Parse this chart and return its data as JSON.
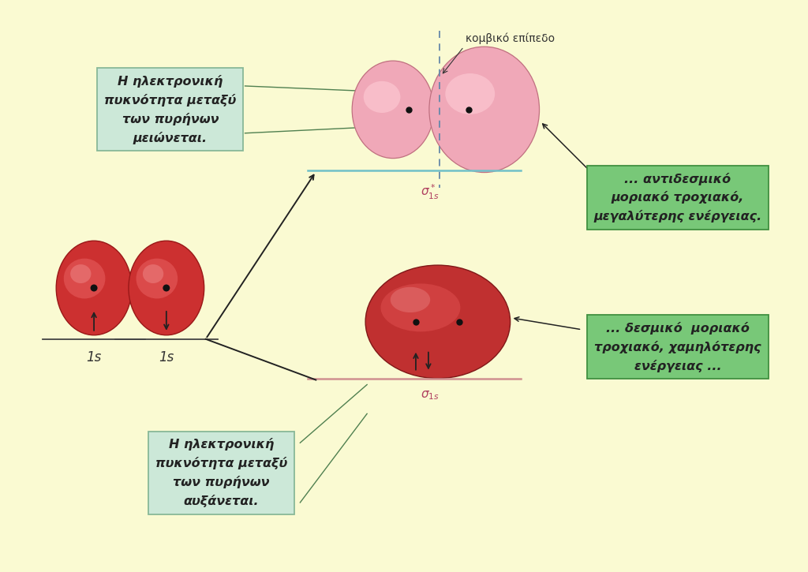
{
  "bg_color": "#FAFAD2",
  "atom_outer_color": "#cc3030",
  "atom_inner_color": "#e86060",
  "atom_highlight_color": "#f09090",
  "atom_dot_color": "#111111",
  "antibonding_left_color": "#f0a8b8",
  "antibonding_right_color": "#f0a8b8",
  "antibonding_edge_color": "#c07080",
  "bonding_color": "#c03030",
  "bonding_inner_color": "#e05050",
  "bonding_edge_color": "#801818",
  "sigma_star_line_color": "#70c0c8",
  "sigma_line_color": "#d09090",
  "dashed_color": "#6688aa",
  "arrow_color": "#222222",
  "node_label": "κομβικό επίπεδο",
  "sigma_star_text": "$\\sigma^*_{1s}$",
  "sigma_text": "$\\sigma_{1s}$",
  "label_1s": "1s",
  "box1_text": "Η ηλεκτρονική\nπυκνότητα μεταξύ\nτων πυρήνων\nμειώνεται.",
  "box2_text": "... αντιδεσμικό\nμοριακό τροχιακό,\nμεγαλύτερης ενέργειας.",
  "box3_text": "... δεσμικό  μοριακό\nτροχιακό, χαμηλότερης\nενέργειας ...",
  "box4_text": "Η ηλεκτρονική\nπυκνότητα μεταξύ\nτων πυρήνων\nαυξάνεται.",
  "box1_fc": "#cce8d8",
  "box1_ec": "#88b898",
  "box2_fc": "#78c878",
  "box2_ec": "#409040",
  "box3_fc": "#78c878",
  "box3_ec": "#409040",
  "box4_fc": "#cce8d8",
  "box4_ec": "#88b898",
  "line_color": "#444444",
  "green_line_color": "#508050"
}
